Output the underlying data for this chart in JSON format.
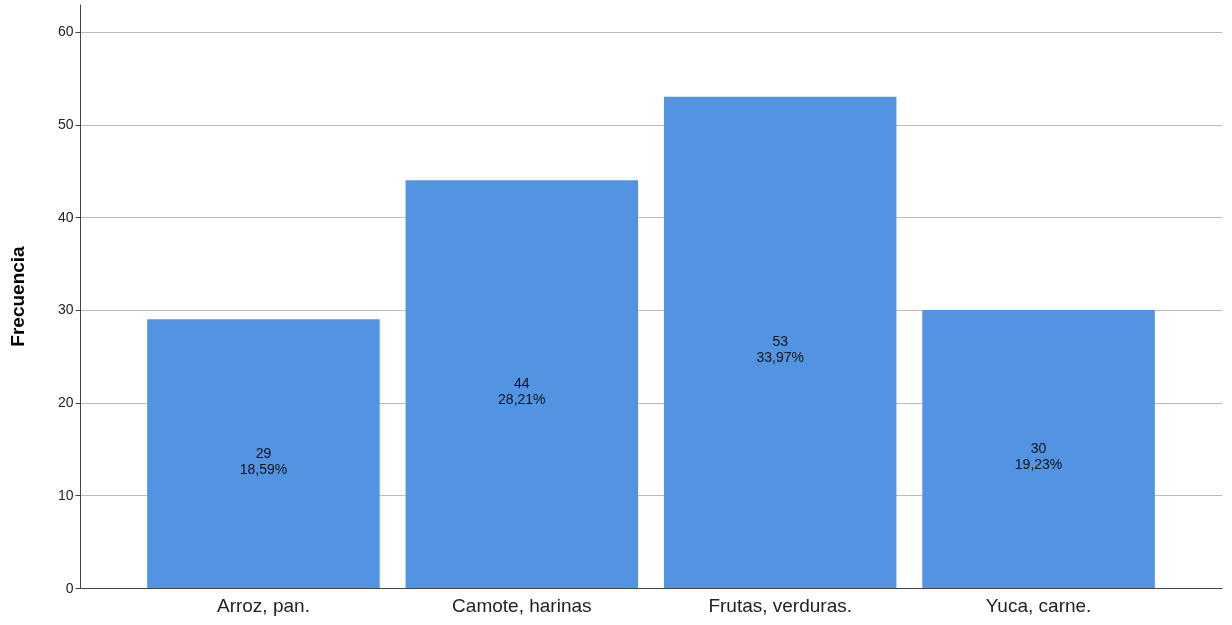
{
  "chart_data": {
    "type": "bar",
    "ylabel": "Frecuencia",
    "categories": [
      "Arroz, pan.",
      "Camote, harinas",
      "Frutas, verduras.",
      "Yuca, carne."
    ],
    "values": [
      29,
      44,
      53,
      30
    ],
    "value_labels": [
      "29\n18,59%",
      "44\n28,21%",
      "53\n33,97%",
      "30\n19,23%"
    ],
    "color": "#5294e2",
    "ylim": [
      0,
      63
    ],
    "yticks": [
      0,
      10,
      20,
      30,
      40,
      50,
      60
    ],
    "grid": "y"
  }
}
